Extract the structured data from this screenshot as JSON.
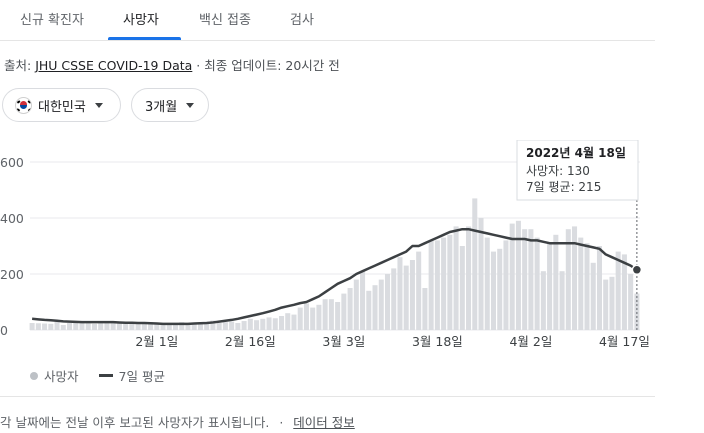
{
  "tabs": [
    {
      "label": "신규 확진자"
    },
    {
      "label": "사망자"
    },
    {
      "label": "백신 접종"
    },
    {
      "label": "검사"
    }
  ],
  "source": {
    "prefix": "출처: ",
    "link": "JHU CSSE COVID-19 Data",
    "suffix": " · 최종 업데이트: 20시간 전"
  },
  "filters": {
    "country": "대한민국",
    "period": "3개월"
  },
  "tooltip": {
    "date": "2022년 4월 18일",
    "deaths": "사망자: 130",
    "avg": "7일 평균: 215"
  },
  "legend": {
    "deaths": "사망자",
    "avg": "7일 평균"
  },
  "footer": {
    "note": "각 날짜에는 전날 이후 보고된 사망자가 표시됩니다.",
    "separator": "·",
    "link": "데이터 정보"
  },
  "colors": {
    "bar": "#dadce0",
    "line": "#3c4043",
    "tab_active": "#1a73e8"
  },
  "chart_data": {
    "type": "bar",
    "ylim": [
      0,
      600
    ],
    "y_ticks": [
      "0",
      "200",
      "400",
      "600"
    ],
    "x_ticks": [
      {
        "index": 20,
        "label": "2월 1일"
      },
      {
        "index": 35,
        "label": "2월 16일"
      },
      {
        "index": 50,
        "label": "3월 3일"
      },
      {
        "index": 65,
        "label": "3월 18일"
      },
      {
        "index": 80,
        "label": "4월 2일"
      },
      {
        "index": 95,
        "label": "4월 17일"
      }
    ],
    "series": [
      {
        "type": "bar",
        "values": [
          25,
          24,
          23,
          22,
          30,
          18,
          25,
          28,
          26,
          24,
          22,
          25,
          28,
          27,
          24,
          22,
          28,
          25,
          24,
          28,
          20,
          25,
          22,
          23,
          28,
          18,
          20,
          24,
          22,
          34,
          25,
          28,
          30,
          25,
          32,
          40,
          35,
          40,
          45,
          42,
          50,
          60,
          55,
          80,
          95,
          80,
          90,
          110,
          110,
          100,
          130,
          150,
          180,
          210,
          140,
          160,
          180,
          200,
          220,
          260,
          230,
          250,
          280,
          150,
          320,
          320,
          330,
          340,
          370,
          300,
          370,
          470,
          400,
          330,
          280,
          290,
          320,
          380,
          390,
          360,
          360,
          330,
          210,
          310,
          340,
          210,
          360,
          370,
          330,
          310,
          240,
          300,
          180,
          190,
          280,
          270,
          200,
          130
        ]
      },
      {
        "type": "line",
        "values": [
          40,
          38,
          36,
          35,
          33,
          31,
          30,
          29,
          28,
          28,
          28,
          28,
          28,
          28,
          27,
          26,
          26,
          25,
          25,
          24,
          23,
          22,
          22,
          22,
          22,
          22,
          23,
          24,
          25,
          27,
          30,
          33,
          36,
          40,
          45,
          50,
          55,
          60,
          66,
          72,
          80,
          85,
          90,
          96,
          100,
          110,
          120,
          135,
          150,
          165,
          175,
          185,
          200,
          210,
          220,
          230,
          240,
          250,
          260,
          270,
          280,
          300,
          300,
          310,
          320,
          330,
          340,
          350,
          355,
          360,
          360,
          355,
          350,
          345,
          340,
          335,
          330,
          325,
          325,
          325,
          320,
          320,
          315,
          310,
          310,
          310,
          310,
          310,
          305,
          300,
          295,
          290,
          270,
          260,
          250,
          240,
          230,
          215
        ]
      }
    ]
  }
}
